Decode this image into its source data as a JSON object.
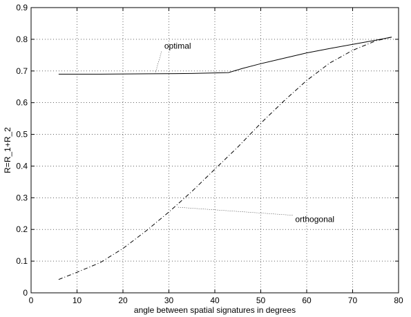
{
  "chart_data": {
    "type": "line",
    "title": "",
    "xlabel": "angle between spatial signatures in degrees",
    "ylabel": "R=R_1+R_2",
    "xlim": [
      0,
      80
    ],
    "ylim": [
      0,
      0.9
    ],
    "x_ticks": [
      "0",
      "10",
      "20",
      "30",
      "40",
      "50",
      "60",
      "70",
      "80"
    ],
    "y_ticks": [
      "0",
      "0.1",
      "0.2",
      "0.3",
      "0.4",
      "0.5",
      "0.6",
      "0.7",
      "0.8",
      "0.9"
    ],
    "grid": true,
    "series": [
      {
        "name": "optimal",
        "style": "solid",
        "color": "#000000",
        "points": [
          [
            6,
            0.69
          ],
          [
            15,
            0.69
          ],
          [
            25,
            0.691
          ],
          [
            35,
            0.692
          ],
          [
            43,
            0.695
          ],
          [
            46,
            0.708
          ],
          [
            50,
            0.723
          ],
          [
            55,
            0.74
          ],
          [
            60,
            0.757
          ],
          [
            65,
            0.771
          ],
          [
            70,
            0.784
          ],
          [
            75,
            0.797
          ],
          [
            78.5,
            0.807
          ]
        ]
      },
      {
        "name": "orthogonal",
        "style": "dashdot",
        "color": "#000000",
        "points": [
          [
            6,
            0.042
          ],
          [
            10,
            0.065
          ],
          [
            15,
            0.095
          ],
          [
            20,
            0.14
          ],
          [
            25,
            0.195
          ],
          [
            30,
            0.255
          ],
          [
            35,
            0.32
          ],
          [
            40,
            0.39
          ],
          [
            45,
            0.46
          ],
          [
            50,
            0.535
          ],
          [
            55,
            0.605
          ],
          [
            60,
            0.67
          ],
          [
            65,
            0.725
          ],
          [
            70,
            0.765
          ],
          [
            75,
            0.795
          ],
          [
            78.5,
            0.807
          ]
        ]
      }
    ],
    "annotations": [
      {
        "text": "optimal",
        "x": 29,
        "y": 0.77,
        "pointer_to": [
          27,
          0.691
        ]
      },
      {
        "text": "orthogonal",
        "x": 57.5,
        "y": 0.223,
        "pointer_to": [
          32,
          0.27
        ]
      }
    ]
  }
}
